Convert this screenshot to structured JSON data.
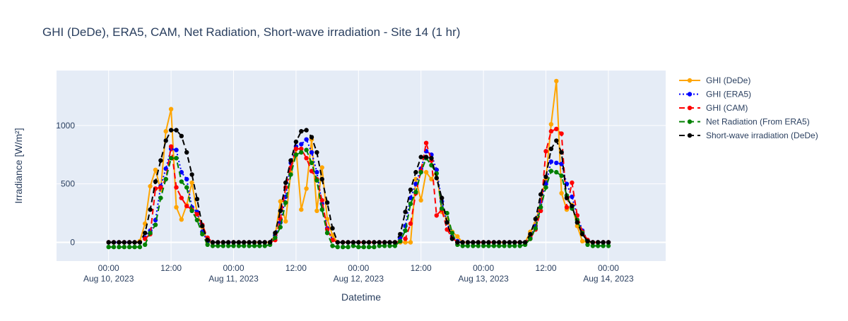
{
  "chart_data": {
    "type": "line",
    "title": "GHI (DeDe), ERA5, CAM, Net Radiation, Short-wave irradiation - Site 14 (1 hr)",
    "xlabel": "Datetime",
    "ylabel": "Irradiance [W/m²]",
    "xlim": [
      "2023-08-09 14:00",
      "2023-08-14 11:00"
    ],
    "ylim": [
      -160,
      1470
    ],
    "x_ticks": [
      {
        "x": "2023-08-10 00:00",
        "line1": "00:00",
        "line2": "Aug 10, 2023"
      },
      {
        "x": "2023-08-10 12:00",
        "line1": "12:00",
        "line2": ""
      },
      {
        "x": "2023-08-11 00:00",
        "line1": "00:00",
        "line2": "Aug 11, 2023"
      },
      {
        "x": "2023-08-11 12:00",
        "line1": "12:00",
        "line2": ""
      },
      {
        "x": "2023-08-12 00:00",
        "line1": "00:00",
        "line2": "Aug 12, 2023"
      },
      {
        "x": "2023-08-12 12:00",
        "line1": "12:00",
        "line2": ""
      },
      {
        "x": "2023-08-13 00:00",
        "line1": "00:00",
        "line2": "Aug 13, 2023"
      },
      {
        "x": "2023-08-13 12:00",
        "line1": "12:00",
        "line2": ""
      },
      {
        "x": "2023-08-14 00:00",
        "line1": "00:00",
        "line2": "Aug 14, 2023"
      }
    ],
    "y_ticks": [
      0,
      500,
      1000
    ],
    "grid": true,
    "legend_position": "right",
    "x": [
      "2023-08-10 00:00",
      "2023-08-10 01:00",
      "2023-08-10 02:00",
      "2023-08-10 03:00",
      "2023-08-10 04:00",
      "2023-08-10 05:00",
      "2023-08-10 06:00",
      "2023-08-10 07:00",
      "2023-08-10 08:00",
      "2023-08-10 09:00",
      "2023-08-10 10:00",
      "2023-08-10 11:00",
      "2023-08-10 12:00",
      "2023-08-10 13:00",
      "2023-08-10 14:00",
      "2023-08-10 15:00",
      "2023-08-10 16:00",
      "2023-08-10 17:00",
      "2023-08-10 18:00",
      "2023-08-10 19:00",
      "2023-08-10 20:00",
      "2023-08-10 21:00",
      "2023-08-10 22:00",
      "2023-08-10 23:00",
      "2023-08-11 00:00",
      "2023-08-11 01:00",
      "2023-08-11 02:00",
      "2023-08-11 03:00",
      "2023-08-11 04:00",
      "2023-08-11 05:00",
      "2023-08-11 06:00",
      "2023-08-11 07:00",
      "2023-08-11 08:00",
      "2023-08-11 09:00",
      "2023-08-11 10:00",
      "2023-08-11 11:00",
      "2023-08-11 12:00",
      "2023-08-11 13:00",
      "2023-08-11 14:00",
      "2023-08-11 15:00",
      "2023-08-11 16:00",
      "2023-08-11 17:00",
      "2023-08-11 18:00",
      "2023-08-11 19:00",
      "2023-08-11 20:00",
      "2023-08-11 21:00",
      "2023-08-11 22:00",
      "2023-08-11 23:00",
      "2023-08-12 00:00",
      "2023-08-12 01:00",
      "2023-08-12 02:00",
      "2023-08-12 03:00",
      "2023-08-12 04:00",
      "2023-08-12 05:00",
      "2023-08-12 06:00",
      "2023-08-12 07:00",
      "2023-08-12 08:00",
      "2023-08-12 09:00",
      "2023-08-12 10:00",
      "2023-08-12 11:00",
      "2023-08-12 12:00",
      "2023-08-12 13:00",
      "2023-08-12 14:00",
      "2023-08-12 15:00",
      "2023-08-12 16:00",
      "2023-08-12 17:00",
      "2023-08-12 18:00",
      "2023-08-12 19:00",
      "2023-08-12 20:00",
      "2023-08-12 21:00",
      "2023-08-12 22:00",
      "2023-08-12 23:00",
      "2023-08-13 00:00",
      "2023-08-13 01:00",
      "2023-08-13 02:00",
      "2023-08-13 03:00",
      "2023-08-13 04:00",
      "2023-08-13 05:00",
      "2023-08-13 06:00",
      "2023-08-13 07:00",
      "2023-08-13 08:00",
      "2023-08-13 09:00",
      "2023-08-13 10:00",
      "2023-08-13 11:00",
      "2023-08-13 12:00",
      "2023-08-13 13:00",
      "2023-08-13 14:00",
      "2023-08-13 15:00",
      "2023-08-13 16:00",
      "2023-08-13 17:00",
      "2023-08-13 18:00",
      "2023-08-13 19:00",
      "2023-08-13 20:00",
      "2023-08-13 21:00",
      "2023-08-13 22:00",
      "2023-08-13 23:00",
      "2023-08-14 00:00"
    ],
    "series": [
      {
        "name": "GHI (DeDe)",
        "color": "#ffa500",
        "dash": "solid",
        "values": [
          0,
          0,
          0,
          0,
          0,
          0,
          10,
          160,
          480,
          620,
          450,
          950,
          1140,
          300,
          195,
          320,
          510,
          250,
          130,
          0,
          0,
          0,
          0,
          0,
          0,
          0,
          0,
          0,
          0,
          0,
          0,
          0,
          60,
          350,
          180,
          600,
          800,
          280,
          460,
          880,
          270,
          640,
          200,
          60,
          0,
          0,
          0,
          0,
          0,
          0,
          0,
          0,
          0,
          0,
          0,
          0,
          0,
          0,
          0,
          540,
          360,
          600,
          540,
          620,
          260,
          200,
          90,
          50,
          0,
          0,
          0,
          0,
          0,
          0,
          0,
          0,
          0,
          0,
          0,
          0,
          0,
          90,
          160,
          360,
          540,
          1010,
          1380,
          420,
          280,
          320,
          140,
          10,
          0,
          0,
          0,
          0,
          0
        ]
      },
      {
        "name": "GHI (ERA5)",
        "color": "#0000ff",
        "dash": "dot",
        "values": [
          0,
          0,
          0,
          0,
          0,
          0,
          0,
          40,
          100,
          190,
          480,
          630,
          800,
          790,
          600,
          540,
          300,
          260,
          90,
          10,
          0,
          0,
          0,
          0,
          0,
          0,
          0,
          0,
          0,
          0,
          0,
          0,
          60,
          170,
          390,
          680,
          820,
          840,
          880,
          770,
          600,
          330,
          120,
          20,
          0,
          0,
          0,
          0,
          0,
          0,
          0,
          0,
          0,
          0,
          0,
          0,
          40,
          140,
          380,
          500,
          630,
          780,
          750,
          620,
          350,
          170,
          50,
          10,
          0,
          0,
          0,
          0,
          0,
          0,
          0,
          0,
          0,
          0,
          0,
          0,
          0,
          40,
          140,
          350,
          500,
          690,
          680,
          670,
          500,
          390,
          230,
          100,
          20,
          0,
          0,
          0,
          0
        ]
      },
      {
        "name": "GHI (CAM)",
        "color": "#ff0000",
        "dash": "dash",
        "values": [
          0,
          0,
          0,
          0,
          0,
          0,
          0,
          30,
          70,
          460,
          470,
          540,
          820,
          470,
          380,
          310,
          280,
          240,
          150,
          40,
          0,
          0,
          0,
          0,
          0,
          0,
          0,
          0,
          0,
          0,
          0,
          0,
          20,
          200,
          470,
          640,
          800,
          800,
          720,
          610,
          540,
          360,
          110,
          20,
          0,
          0,
          0,
          0,
          0,
          0,
          0,
          0,
          0,
          0,
          0,
          0,
          10,
          30,
          160,
          420,
          610,
          850,
          700,
          230,
          280,
          110,
          40,
          0,
          0,
          0,
          0,
          0,
          0,
          0,
          0,
          0,
          0,
          0,
          0,
          0,
          0,
          30,
          110,
          270,
          780,
          950,
          970,
          930,
          300,
          510,
          230,
          90,
          20,
          0,
          0,
          0,
          0
        ]
      },
      {
        "name": "Net Radiation (From ERA5)",
        "color": "#008000",
        "dash": "dash",
        "values": [
          -40,
          -40,
          -40,
          -40,
          -40,
          -40,
          -40,
          -20,
          80,
          150,
          380,
          540,
          720,
          720,
          520,
          470,
          270,
          190,
          70,
          -20,
          -30,
          -30,
          -30,
          -30,
          -30,
          -30,
          -30,
          -30,
          -30,
          -30,
          -30,
          -20,
          40,
          130,
          340,
          580,
          750,
          770,
          790,
          680,
          530,
          280,
          80,
          -30,
          -40,
          -40,
          -40,
          -30,
          -40,
          -40,
          -40,
          -40,
          -30,
          -30,
          -30,
          -30,
          10,
          100,
          330,
          430,
          600,
          720,
          660,
          590,
          290,
          250,
          80,
          -20,
          -30,
          -30,
          -30,
          -30,
          -30,
          -30,
          -30,
          -30,
          -30,
          -30,
          -30,
          -30,
          -20,
          30,
          120,
          300,
          470,
          610,
          600,
          570,
          400,
          290,
          190,
          80,
          -20,
          -30,
          -30,
          -30,
          -30
        ]
      },
      {
        "name": "Short-wave irradiation (DeDe)",
        "color": "#000000",
        "dash": "dash",
        "values": [
          0,
          0,
          0,
          0,
          0,
          0,
          0,
          80,
          280,
          520,
          700,
          870,
          960,
          960,
          910,
          770,
          580,
          370,
          140,
          20,
          0,
          0,
          0,
          0,
          0,
          0,
          0,
          0,
          0,
          0,
          0,
          0,
          80,
          270,
          510,
          700,
          860,
          950,
          960,
          900,
          770,
          540,
          340,
          120,
          0,
          0,
          0,
          0,
          0,
          0,
          0,
          0,
          0,
          0,
          0,
          0,
          70,
          260,
          450,
          600,
          730,
          730,
          720,
          550,
          380,
          170,
          30,
          0,
          0,
          0,
          0,
          0,
          0,
          0,
          0,
          0,
          0,
          0,
          0,
          0,
          0,
          70,
          200,
          410,
          560,
          800,
          870,
          770,
          380,
          310,
          170,
          70,
          10,
          0,
          0,
          0,
          0
        ]
      }
    ]
  }
}
